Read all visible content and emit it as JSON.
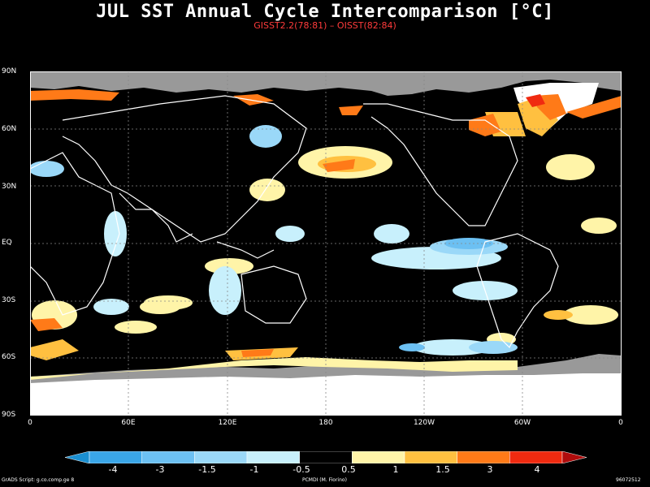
{
  "title": "JUL SST Annual Cycle Intercomparison [°C]",
  "subtitle": "GISST2.2(78:81) – OISST(82:84)",
  "lat_labels": [
    "90N",
    "60N",
    "30N",
    "EQ",
    "30S",
    "60S",
    "90S"
  ],
  "lon_labels": [
    "0",
    "60E",
    "120E",
    "180",
    "120W",
    "60W",
    "0"
  ],
  "colorbar": {
    "labels": [
      "-4",
      "-3",
      "-1.5",
      "-1",
      "-0.5",
      "0.5",
      "1",
      "1.5",
      "3",
      "4"
    ],
    "colors": [
      "#1b8fd0",
      "#3aa6e8",
      "#6cc0f2",
      "#9ad8f8",
      "#c8f0fc",
      "#000000",
      "#fff4a8",
      "#ffc040",
      "#ff7a18",
      "#f02a10",
      "#b00c0c"
    ]
  },
  "colors": {
    "land": "#000000",
    "coast": "#ffffff",
    "missing": "#999999",
    "ice": "#ffffff"
  },
  "footer": {
    "left": "GrADS Script: g.co.comp.ge 8",
    "center": "PCMDI (M. Fiorino)",
    "right": "96072512"
  }
}
